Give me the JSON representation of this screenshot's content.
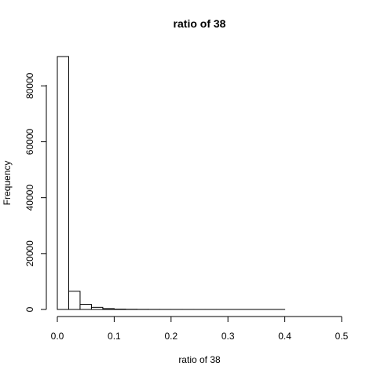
{
  "chart_data": {
    "type": "bar",
    "title": "ratio of 38",
    "xlabel": "ratio of 38",
    "ylabel": "Frequency",
    "bin_width": 0.02,
    "bin_starts": [
      0.0,
      0.02,
      0.04,
      0.06,
      0.08,
      0.1,
      0.12,
      0.14,
      0.16,
      0.18,
      0.2,
      0.22,
      0.24,
      0.26,
      0.28,
      0.3,
      0.32,
      0.34,
      0.36,
      0.38,
      0.4,
      0.42,
      0.44,
      0.46,
      0.48
    ],
    "values": [
      90500,
      6500,
      1800,
      750,
      300,
      130,
      70,
      40,
      25,
      15,
      10,
      8,
      6,
      5,
      4,
      3,
      3,
      2,
      2,
      2,
      1,
      1,
      1,
      1,
      1
    ],
    "xlim": [
      0.0,
      0.5
    ],
    "ylim": [
      0,
      90500
    ],
    "x_ticks": [
      0.0,
      0.1,
      0.2,
      0.3,
      0.4,
      0.5
    ],
    "x_tick_labels": [
      "0.0",
      "0.1",
      "0.2",
      "0.3",
      "0.4",
      "0.5"
    ],
    "y_ticks": [
      0,
      20000,
      40000,
      60000,
      80000
    ],
    "y_tick_labels": [
      "0",
      "20000",
      "40000",
      "60000",
      "80000"
    ],
    "grid": false,
    "bar_fill": "#ffffff",
    "bar_stroke": "#000000"
  }
}
